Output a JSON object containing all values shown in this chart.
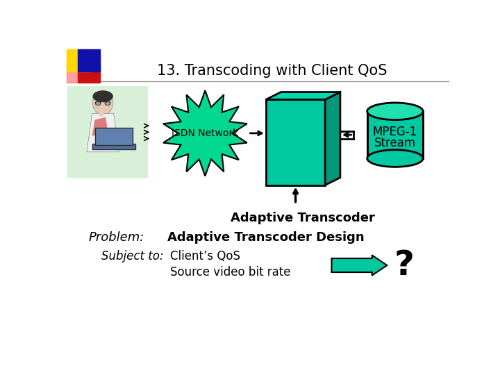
{
  "title": "13. Transcoding with Client QoS",
  "title_fontsize": 15,
  "bg_color": "#ffffff",
  "teal_color": "#00C8A0",
  "teal_mid": "#009878",
  "teal_top": "#00D8B0",
  "box_color": "#00C8A0",
  "cylinder_color": "#00C8A0",
  "burst_color": "#00D890",
  "text_color": "#000000",
  "isdn_label": "ISDN Network",
  "mpeg_label1": "MPEG-1",
  "mpeg_label2": "Stream",
  "adaptive_label": "Adaptive Transcoder",
  "problem_label": "Problem:",
  "adaptive_design_label": "Adaptive Transcoder Design",
  "subject_label": "Subject to:",
  "constraint1": "Client’s QoS",
  "constraint2": "Source video bit rate",
  "question_mark": "?"
}
